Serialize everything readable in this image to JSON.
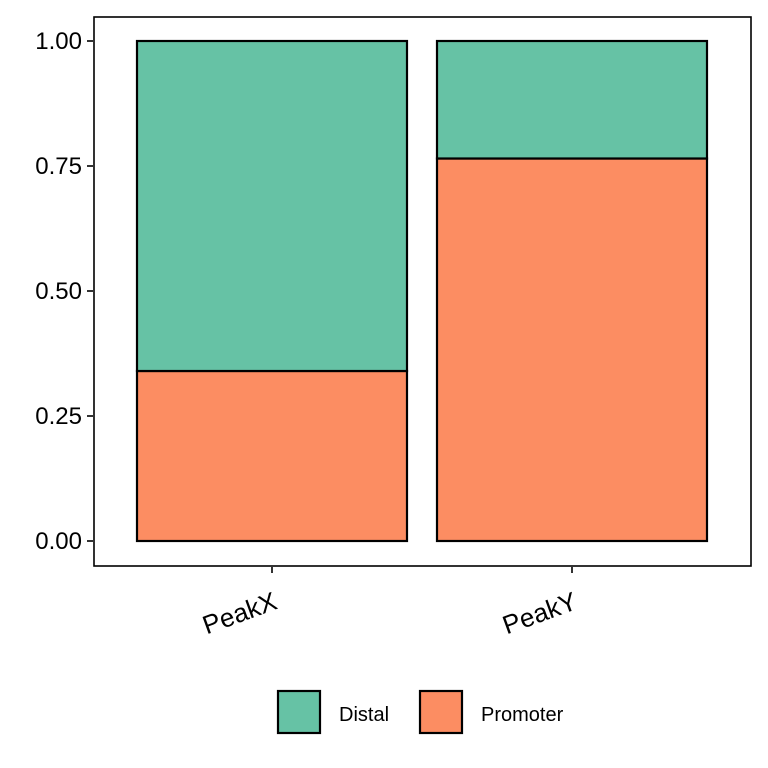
{
  "chart_data": {
    "type": "bar",
    "stacked": true,
    "categories": [
      "PeakX",
      "PeakY"
    ],
    "series": [
      {
        "name": "Promoter",
        "values": [
          0.34,
          0.765
        ],
        "color": "#FC8D62"
      },
      {
        "name": "Distal",
        "values": [
          0.66,
          0.235
        ],
        "color": "#66C2A5"
      }
    ],
    "legend": {
      "position": "bottom",
      "entries": [
        {
          "label": "Distal",
          "color": "#66C2A5"
        },
        {
          "label": "Promoter",
          "color": "#FC8D62"
        }
      ]
    },
    "yticks": [
      "0.00",
      "0.25",
      "0.50",
      "0.75",
      "1.00"
    ],
    "ylim": [
      0,
      1
    ],
    "grid": false,
    "xlabel": "",
    "ylabel": "",
    "title": ""
  }
}
